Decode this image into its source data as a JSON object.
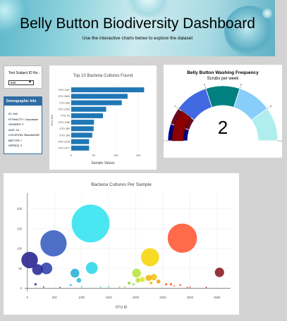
{
  "header": {
    "title": "Belly Button Biodiversity Dashboard",
    "subtitle": "Use the interactive charts below to explore the dataset"
  },
  "selector": {
    "label": "Test Subject ID No.:",
    "selected": "940"
  },
  "demographics": {
    "heading": "Demographic Info",
    "rows": [
      "ID: 940",
      "ETHNICITY: Caucasian",
      "GENDER: F",
      "AGE: 24",
      "LOCATION: Beaufort/NC",
      "BBTYPE: I",
      "WFREQ: 2"
    ]
  },
  "bar_chart": {
    "title": "Top 10 Bacteria Cultures Found",
    "xlabel": "Sample Values",
    "ylabel": "OTU IDs",
    "xticks": [
      "0",
      "50",
      "100",
      "150"
    ]
  },
  "gauge": {
    "title": "Belly Button Washing Frequency",
    "subtitle": "Scrubs per week",
    "value_label": "2",
    "tick_labels": [
      "0",
      "2",
      "4",
      "6",
      "8",
      "10"
    ]
  },
  "bubble_chart": {
    "title": "Bacteria Cultures Per Sample",
    "xlabel": "OTU ID",
    "xticks": [
      "0",
      "500",
      "1000",
      "1500",
      "2000",
      "2500",
      "3000",
      "3500"
    ],
    "yticks": [
      "0",
      "50",
      "100",
      "150",
      "200"
    ]
  },
  "chart_data": [
    {
      "type": "bar",
      "orientation": "horizontal",
      "title": "Top 10 Bacteria Cultures Found",
      "xlabel": "Sample Values",
      "ylabel": "OTU IDs",
      "categories": [
        "OTU 1167",
        "OTU 2859",
        "OTU 482",
        "OTU 2264",
        "OTU 41",
        "OTU 1189",
        "OTU 352",
        "OTU 189",
        "OTU 2318",
        "OTU 1977"
      ],
      "values": [
        163,
        126,
        113,
        78,
        71,
        51,
        50,
        47,
        40,
        40
      ],
      "xlim": [
        0,
        175
      ]
    },
    {
      "type": "gauge",
      "title": "Belly Button Washing Frequency",
      "subtitle": "Scrubs per week",
      "value": 2,
      "range": [
        0,
        10
      ],
      "steps": [
        {
          "range": [
            0,
            1
          ],
          "color": "#00007f"
        },
        {
          "range": [
            1,
            2
          ],
          "color": "#6b0a1f"
        },
        {
          "range": [
            2,
            4
          ],
          "color": "#4169e1"
        },
        {
          "range": [
            4,
            6
          ],
          "color": "#008080"
        },
        {
          "range": [
            6,
            8
          ],
          "color": "#87cefa"
        },
        {
          "range": [
            8,
            10
          ],
          "color": "#b0eeee"
        }
      ]
    },
    {
      "type": "scatter",
      "title": "Bacteria Cultures Per Sample",
      "xlabel": "OTU ID",
      "xlim": [
        -50,
        3750
      ],
      "ylim": [
        -8,
        240
      ],
      "points": [
        {
          "x": 1167,
          "y": 163,
          "color": "#36e3f0"
        },
        {
          "x": 482,
          "y": 113,
          "color": "#3a5fc0"
        },
        {
          "x": 2859,
          "y": 126,
          "color": "#ff5a36"
        },
        {
          "x": 41,
          "y": 71,
          "color": "#2c2790"
        },
        {
          "x": 2264,
          "y": 78,
          "color": "#f7d60e"
        },
        {
          "x": 1189,
          "y": 51,
          "color": "#33d7ea"
        },
        {
          "x": 189,
          "y": 47,
          "color": "#2b2d98"
        },
        {
          "x": 352,
          "y": 50,
          "color": "#3347ad"
        },
        {
          "x": 3545,
          "y": 40,
          "color": "#8b1f28"
        },
        {
          "x": 877,
          "y": 38,
          "color": "#2db2d6"
        },
        {
          "x": 2015,
          "y": 38,
          "color": "#b9e540"
        },
        {
          "x": 2331,
          "y": 28,
          "color": "#f3c813"
        },
        {
          "x": 2237,
          "y": 26,
          "color": "#f4b319"
        },
        {
          "x": 2122,
          "y": 22,
          "color": "#dde835"
        },
        {
          "x": 2040,
          "y": 20,
          "color": "#bde63c"
        },
        {
          "x": 2419,
          "y": 17,
          "color": "#f1a21c"
        },
        {
          "x": 950,
          "y": 20,
          "color": "#31c1de"
        },
        {
          "x": 1878,
          "y": 13,
          "color": "#92de48"
        },
        {
          "x": 2283,
          "y": 13,
          "color": "#f6c019"
        },
        {
          "x": 1960,
          "y": 10,
          "color": "#a6e043"
        },
        {
          "x": 2560,
          "y": 10,
          "color": "#f46b25"
        },
        {
          "x": 2650,
          "y": 10,
          "color": "#ff5a2f"
        },
        {
          "x": 2708,
          "y": 6,
          "color": "#ff6131"
        },
        {
          "x": 2821,
          "y": 8,
          "color": "#ff5330"
        },
        {
          "x": 150,
          "y": 10,
          "color": "#2d2b95"
        },
        {
          "x": 800,
          "y": 8,
          "color": "#2aa2d0"
        },
        {
          "x": 1500,
          "y": 4,
          "color": "#4fd4b4"
        },
        {
          "x": 1700,
          "y": 3,
          "color": "#7fd85a"
        },
        {
          "x": 1000,
          "y": 4,
          "color": "#38c8e0"
        },
        {
          "x": 300,
          "y": 3,
          "color": "#323ba4"
        },
        {
          "x": 600,
          "y": 2,
          "color": "#2a7bc3"
        },
        {
          "x": 3000,
          "y": 3,
          "color": "#e23e34"
        },
        {
          "x": 3300,
          "y": 2,
          "color": "#b52a2f"
        },
        {
          "x": 2950,
          "y": 2,
          "color": "#ea4431"
        },
        {
          "x": 1350,
          "y": 3,
          "color": "#45d8c8"
        },
        {
          "x": 1800,
          "y": 3,
          "color": "#8cdc4d"
        }
      ]
    }
  ]
}
